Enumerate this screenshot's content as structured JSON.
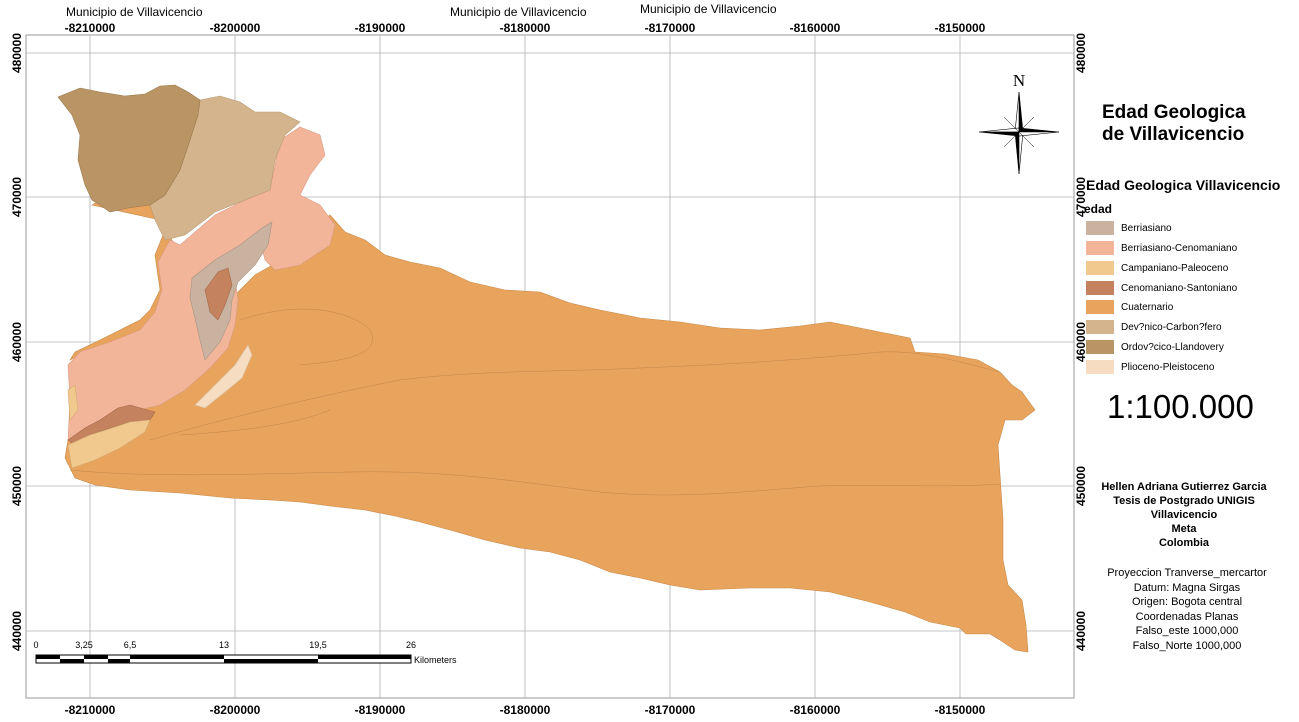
{
  "municipality_labels": [
    "Municipio de Villavicencio",
    "Municipio de Villavicencio",
    "Municipio de Villavicencio"
  ],
  "x_ticks": [
    "-8210000",
    "-8200000",
    "-8190000",
    "-8180000",
    "-8170000",
    "-8160000",
    "-8150000"
  ],
  "y_ticks": [
    "480000",
    "470000",
    "460000",
    "450000",
    "440000"
  ],
  "title_lines": [
    "Edad Geologica",
    "de Villavicencio"
  ],
  "north_label": "N",
  "legend": {
    "title": "Edad Geologica Villavicencio",
    "subtitle": "edad",
    "items": [
      {
        "label": "Berriasiano",
        "color": "#c9b2a0"
      },
      {
        "label": "Berriasiano-Cenomaniano",
        "color": "#f3b59a"
      },
      {
        "label": "Campaniano-Paleoceno",
        "color": "#f1c98e"
      },
      {
        "label": "Cenomaniano-Santoniano",
        "color": "#c4825f"
      },
      {
        "label": "Cuaternario",
        "color": "#e8a35c"
      },
      {
        "label": "Dev?nico-Carbon?fero",
        "color": "#d4b48c"
      },
      {
        "label": "Ordov?cico-Llandovery",
        "color": "#b99566"
      },
      {
        "label": "Plioceno-Pleistoceno",
        "color": "#f6dcc0"
      }
    ]
  },
  "scale_ratio": "1:100.000",
  "scale_bar": {
    "labels": [
      "0",
      "3,25",
      "6,5",
      "13",
      "19,5",
      "26"
    ],
    "unit": "Kilometers"
  },
  "credits": [
    "Hellen Adriana Gutierrez Garcia",
    "Tesis de Postgrado UNIGIS",
    "Villavicencio",
    "Meta",
    "Colombia"
  ],
  "projection": [
    "Proyeccion Tranverse_mercartor",
    "Datum: Magna Sirgas",
    "Origen: Bogota central",
    "Coordenadas Planas",
    "Falso_este 1000,000",
    "Falso_Norte 1000,000"
  ]
}
